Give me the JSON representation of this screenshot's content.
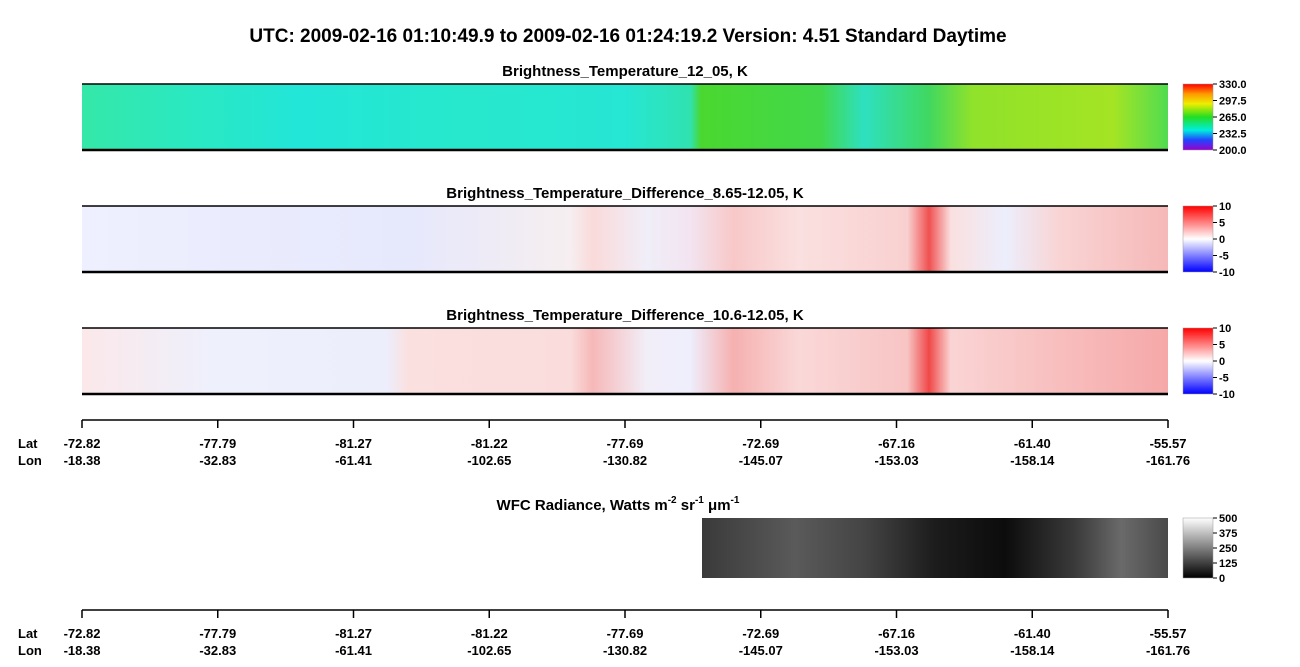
{
  "title": "UTC:  2009-02-16   01:10:49.9  to  2009-02-16   01:24:19.2    Version: 4.51  Standard Daytime",
  "panels": [
    {
      "title": "Brightness_Temperature_12_05, K",
      "colorbar_ticks": [
        "330.0",
        "297.5",
        "265.0",
        "232.5",
        "200.0"
      ]
    },
    {
      "title": "Brightness_Temperature_Difference_8.65-12.05, K",
      "colorbar_ticks": [
        "10",
        "5",
        "0",
        "-5",
        "-10"
      ]
    },
    {
      "title": "Brightness_Temperature_Difference_10.6-12.05, K",
      "colorbar_ticks": [
        "10",
        "5",
        "0",
        "-5",
        "-10"
      ]
    }
  ],
  "radiance": {
    "title_parts": [
      "WFC Radiance, Watts m",
      "-2",
      " sr",
      "-1",
      " μm",
      "-1"
    ],
    "colorbar_ticks": [
      "500",
      "375",
      "250",
      "125",
      "0"
    ]
  },
  "axis": {
    "lat_label": "Lat",
    "lon_label": "Lon",
    "lat": [
      "-72.82",
      "-77.79",
      "-81.27",
      "-81.22",
      "-77.69",
      "-72.69",
      "-67.16",
      "-61.40",
      "-55.57"
    ],
    "lon": [
      "-18.38",
      "-32.83",
      "-61.41",
      "-102.65",
      "-130.82",
      "-145.07",
      "-153.03",
      "-158.14",
      "-161.76"
    ]
  }
}
